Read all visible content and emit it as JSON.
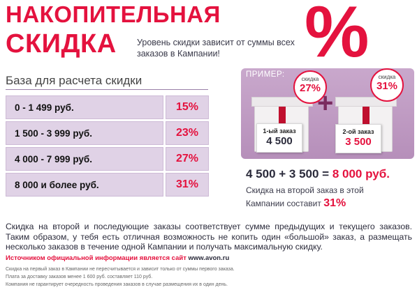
{
  "header": {
    "title_line1": "НАКОПИТЕЛЬНАЯ",
    "title_line2": "СКИДКА",
    "subtitle": "Уровень скидки зависит от суммы всех заказов в Кампании!",
    "percent_sign": "%"
  },
  "base": {
    "label": "База для расчета скидки",
    "rows": [
      {
        "range": "0 - 1 499  руб.",
        "discount": "15%"
      },
      {
        "range": "1 500 - 3 999 руб.",
        "discount": "23%"
      },
      {
        "range": "4 000 - 7 999 руб.",
        "discount": "27%"
      },
      {
        "range": "8 000 и более руб.",
        "discount": "31%"
      }
    ]
  },
  "example": {
    "label": "ПРИМЕР:",
    "order1": {
      "bubble_label": "скидка",
      "bubble_value": "27%",
      "card_label": "1-ый заказ",
      "card_value": "4 500"
    },
    "order2": {
      "bubble_label": "скидка",
      "bubble_value": "31%",
      "card_label": "2-ой заказ",
      "card_value": "3 500"
    },
    "plus": "+",
    "sum_expression": "4 500 + 3 500 = ",
    "sum_total": "8 000 руб.",
    "note_text": "Скидка на второй заказ в этой Кампании составит ",
    "note_percent": "31%"
  },
  "body": {
    "main_text": "Скидка на второй и последующие заказы соответствует сумме предыдущих и текущего заказов. Таким образом, у тебя есть отличная возможность не копить один «большой» заказ, а размещать несколько заказов в течение одной Кампании и получать максимальную скидку.",
    "source_text": "Источником официальной информации является сайт ",
    "source_site": "www.avon.ru",
    "fine_print": [
      "Скидка на первый заказ в Кампании не пересчитывается и зависит только от суммы первого заказа.",
      "Плата за доставку заказов менее 1 600 руб. составляет 110 руб.",
      "Компания не гарантирует очередность проведения заказов в случае размещения их в один день."
    ]
  },
  "colors": {
    "accent": "#e4123e",
    "table_fill": "#e0d2e6",
    "example_panel": "#c9a8cc",
    "text_dark": "#2b2b3b"
  }
}
